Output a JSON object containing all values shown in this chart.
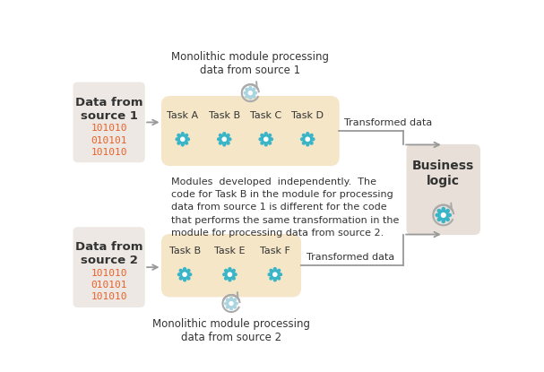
{
  "bg_color": "#ffffff",
  "source_box_color": "#ede8e3",
  "task_box_color": "#f5e6c8",
  "business_box_color": "#e8e0d8",
  "arrow_color": "#999999",
  "gear_color": "#3ab5c8",
  "text_color": "#333333",
  "binary_color": "#e8622a",
  "source1_label": "Data from\nsource 1",
  "source2_label": "Data from\nsource 2",
  "source1_binary": "101010\n010101\n101010",
  "source2_binary": "101010\n010101\n101010",
  "tasks_top": [
    "Task A",
    "Task B",
    "Task C",
    "Task D"
  ],
  "tasks_bottom": [
    "Task B",
    "Task E",
    "Task F"
  ],
  "business_label": "Business\nlogic",
  "top_module_label": "Monolithic module processing\ndata from source 1",
  "bottom_module_label": "Monolithic module processing\ndata from source 2",
  "transformed_data_label": "Transformed data",
  "middle_text": "Modules  developed  independently.  The\ncode for Task B in the module for processing\ndata from source 1 is different for the code\nthat performs the same transformation in the\nmodule for processing data from source 2."
}
